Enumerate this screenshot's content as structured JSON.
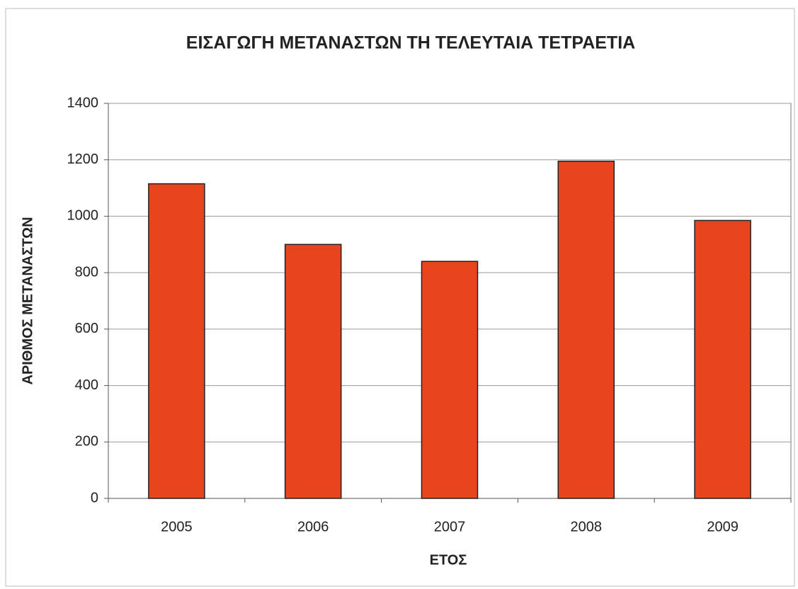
{
  "chart_data": {
    "type": "bar",
    "title": "ΕΙΣΑΓΩΓΗ ΜΕΤΑΝΑΣΤΩΝ ΤΗ ΤΕΛΕΥΤΑΙΑ ΤΕΤΡΑΕΤΙΑ",
    "x_label": "ΕΤΟΣ",
    "y_label": "ΑΡΙΘΜΟΣ ΜΕΤΑΝΑΣΤΩΝ",
    "categories": [
      "2005",
      "2006",
      "2007",
      "2008",
      "2009"
    ],
    "values": [
      1115,
      900,
      840,
      1195,
      985
    ],
    "color": "#e8441e",
    "ylim": [
      0,
      1400
    ],
    "yticks": [
      0,
      200,
      400,
      600,
      800,
      1000,
      1200,
      1400
    ],
    "grid": true
  }
}
